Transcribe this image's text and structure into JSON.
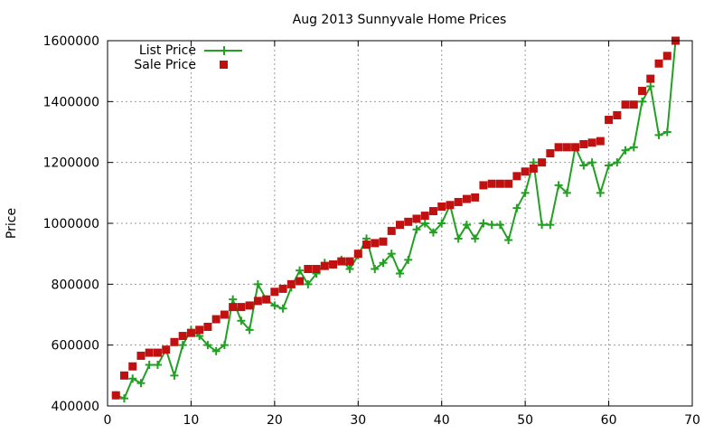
{
  "chart_data": {
    "type": "line",
    "title": "Aug 2013 Sunnyvale Home Prices",
    "xlabel": "",
    "ylabel": "Price",
    "xlim": [
      0,
      70
    ],
    "ylim": [
      400000,
      1600000
    ],
    "xticks": [
      "0",
      "10",
      "20",
      "30",
      "40",
      "50",
      "60",
      "70"
    ],
    "yticks": [
      "400000",
      "600000",
      "800000",
      "1000000",
      "1200000",
      "1400000",
      "1600000"
    ],
    "grid": true,
    "legend_position": "top-left",
    "series": [
      {
        "name": "List Price",
        "style": "line+cross",
        "color": "#22a022",
        "x": [
          1,
          2,
          3,
          4,
          5,
          6,
          7,
          8,
          9,
          10,
          11,
          12,
          13,
          14,
          15,
          16,
          17,
          18,
          19,
          20,
          21,
          22,
          23,
          24,
          25,
          26,
          27,
          28,
          29,
          30,
          31,
          32,
          33,
          34,
          35,
          36,
          37,
          38,
          39,
          40,
          41,
          42,
          43,
          44,
          45,
          46,
          47,
          48,
          49,
          50,
          51,
          52,
          53,
          54,
          55,
          56,
          57,
          58,
          59,
          60,
          61,
          62,
          63,
          64,
          65,
          66,
          67,
          68
        ],
        "values": [
          435000,
          425000,
          490000,
          475000,
          535000,
          535000,
          585000,
          500000,
          600000,
          650000,
          630000,
          600000,
          580000,
          600000,
          750000,
          680000,
          650000,
          800000,
          750000,
          730000,
          720000,
          790000,
          845000,
          800000,
          835000,
          870000,
          865000,
          880000,
          850000,
          895000,
          950000,
          850000,
          870000,
          900000,
          835000,
          880000,
          980000,
          1000000,
          970000,
          1000000,
          1060000,
          950000,
          995000,
          950000,
          1000000,
          995000,
          995000,
          945000,
          1050000,
          1100000,
          1200000,
          995000,
          995000,
          1125000,
          1100000,
          1250000,
          1190000,
          1200000,
          1100000,
          1190000,
          1200000,
          1240000,
          1250000,
          1400000,
          1450000,
          1290000,
          1300000,
          1600000
        ]
      },
      {
        "name": "Sale Price",
        "style": "square",
        "color": "#c01010",
        "x": [
          1,
          2,
          3,
          4,
          5,
          6,
          7,
          8,
          9,
          10,
          11,
          12,
          13,
          14,
          15,
          16,
          17,
          18,
          19,
          20,
          21,
          22,
          23,
          24,
          25,
          26,
          27,
          28,
          29,
          30,
          31,
          32,
          33,
          34,
          35,
          36,
          37,
          38,
          39,
          40,
          41,
          42,
          43,
          44,
          45,
          46,
          47,
          48,
          49,
          50,
          51,
          52,
          53,
          54,
          55,
          56,
          57,
          58,
          59,
          60,
          61,
          62,
          63,
          64,
          65,
          66,
          67,
          68
        ],
        "values": [
          435000,
          500000,
          530000,
          565000,
          575000,
          575000,
          585000,
          610000,
          630000,
          640000,
          650000,
          660000,
          685000,
          700000,
          725000,
          725000,
          730000,
          745000,
          750000,
          775000,
          785000,
          800000,
          810000,
          850000,
          850000,
          860000,
          865000,
          875000,
          875000,
          900000,
          930000,
          935000,
          940000,
          975000,
          995000,
          1005000,
          1015000,
          1025000,
          1040000,
          1055000,
          1060000,
          1070000,
          1080000,
          1085000,
          1125000,
          1130000,
          1130000,
          1130000,
          1155000,
          1170000,
          1180000,
          1200000,
          1230000,
          1250000,
          1250000,
          1250000,
          1260000,
          1265000,
          1270000,
          1340000,
          1355000,
          1390000,
          1390000,
          1435000,
          1475000,
          1525000,
          1550000,
          1600000
        ]
      }
    ]
  }
}
